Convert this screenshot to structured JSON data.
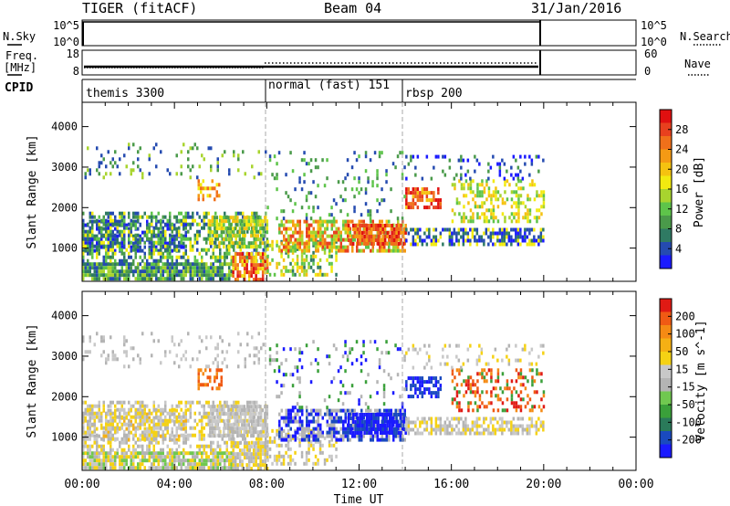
{
  "header": {
    "station": "TIGER (fitACF)",
    "beam": "Beam 04",
    "date": "31/Jan/2016"
  },
  "panels": {
    "nsky": {
      "label": "N.Sky",
      "ticks_left": [
        "10^5",
        "10^0"
      ],
      "ticks_right": [
        "10^5",
        "10^0"
      ],
      "right_label": "N.Search"
    },
    "freq": {
      "label_line1": "Freq.",
      "label_line2": "[MHz]",
      "ticks_left": [
        "18",
        "8"
      ],
      "ticks_right": [
        "60",
        "0"
      ],
      "right_label": "Nave"
    },
    "cpid": {
      "label": "CPID",
      "modes": [
        "themis 3300",
        "normal (fast) 151",
        "rbsp 200"
      ]
    }
  },
  "chart_data": [
    {
      "type": "heatmap",
      "name": "power",
      "ylabel": "Slant Range [km]",
      "colorbar_label": "Power [dB]",
      "colorbar_ticks": [
        "28",
        "24",
        "20",
        "16",
        "12",
        "8",
        "4"
      ],
      "colors": [
        "#1a1aff",
        "#254bb0",
        "#2f7a63",
        "#4a9a4a",
        "#5ec44a",
        "#a8d42e",
        "#f2ea10",
        "#f5c210",
        "#f59a14",
        "#f0701a",
        "#e8401e",
        "#e01010"
      ],
      "yticks": [
        1000,
        2000,
        3000,
        4000
      ],
      "ylim": [
        180,
        4600
      ]
    },
    {
      "type": "heatmap",
      "name": "velocity",
      "ylabel": "Slant Range [km]",
      "colorbar_label": "Velocity [m s^-1]",
      "colorbar_ticks": [
        "200",
        "100",
        "50",
        "15",
        "-15",
        "-50",
        "-100",
        "-200"
      ],
      "colors": [
        "#1a1aff",
        "#1a4abf",
        "#2a7a5a",
        "#3aa03a",
        "#70c850",
        "#b4b4b4",
        "#c8c8c8",
        "#f5d214",
        "#f5b014",
        "#f58a14",
        "#f05a14",
        "#e01a14"
      ],
      "yticks": [
        1000,
        2000,
        3000,
        4000
      ],
      "ylim": [
        180,
        4600
      ]
    }
  ],
  "xaxis": {
    "label": "Time UT",
    "ticks": [
      "00:00",
      "04:00",
      "08:00",
      "12:00",
      "16:00",
      "20:00",
      "00:00"
    ]
  }
}
